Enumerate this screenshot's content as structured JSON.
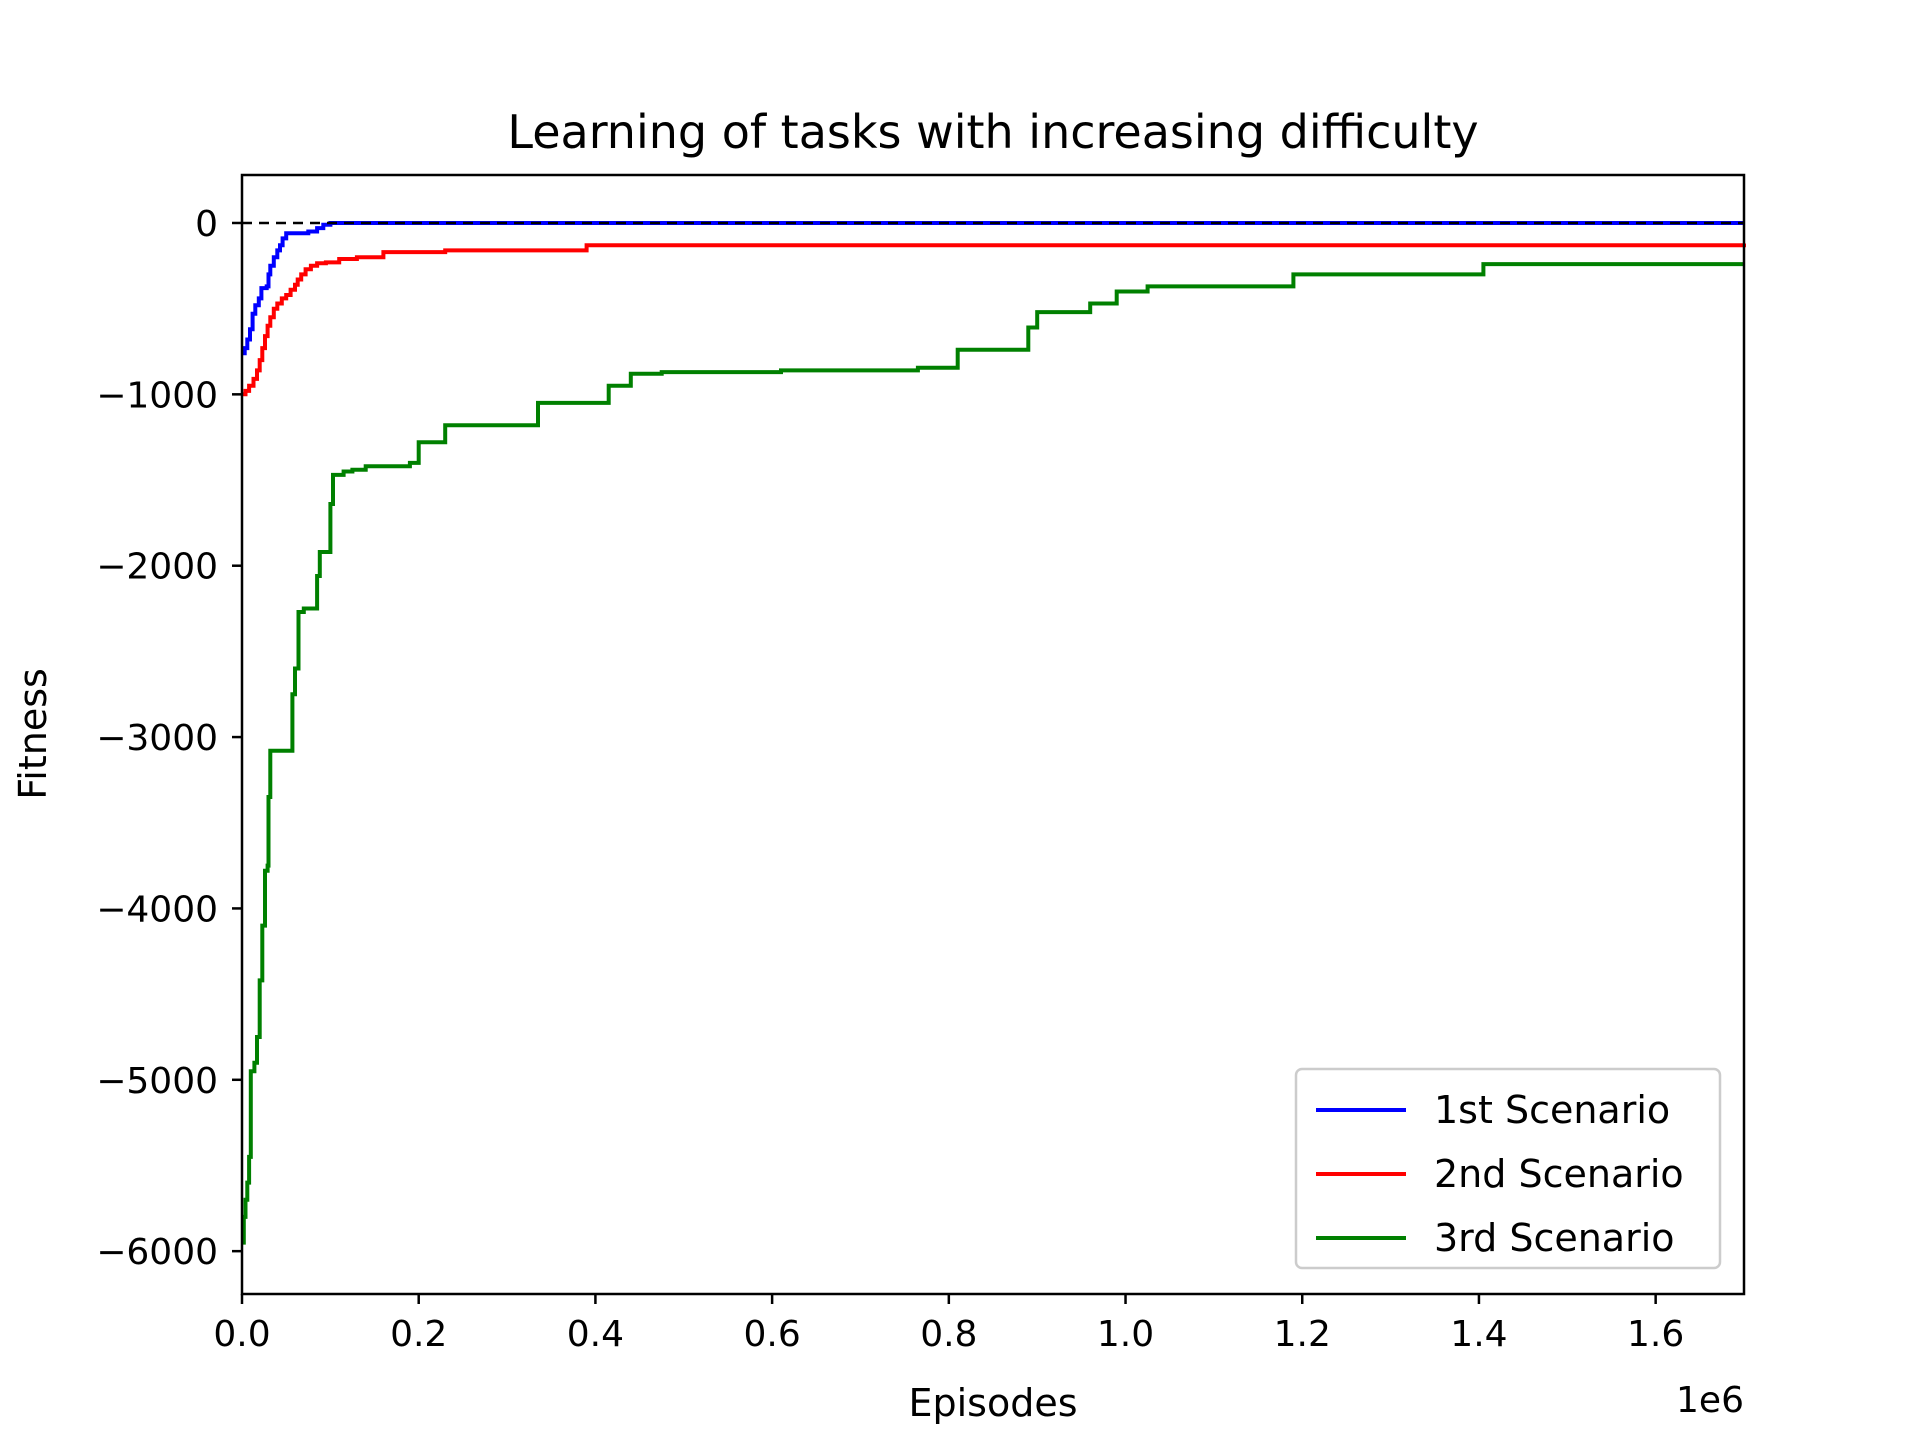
{
  "chart_data": {
    "type": "line",
    "title": "Learning of tasks with increasing difficulty",
    "xlabel": "Episodes",
    "ylabel": "Fitness",
    "x_offset_label": "1e6",
    "xlim": [
      0,
      1700000
    ],
    "ylim": [
      -6250,
      280
    ],
    "x_ticks": [
      {
        "value": 0,
        "label": "0.0"
      },
      {
        "value": 200000,
        "label": "0.2"
      },
      {
        "value": 400000,
        "label": "0.4"
      },
      {
        "value": 600000,
        "label": "0.6"
      },
      {
        "value": 800000,
        "label": "0.8"
      },
      {
        "value": 1000000,
        "label": "1.0"
      },
      {
        "value": 1200000,
        "label": "1.2"
      },
      {
        "value": 1400000,
        "label": "1.4"
      },
      {
        "value": 1600000,
        "label": "1.6"
      }
    ],
    "y_ticks": [
      {
        "value": 0,
        "label": "0"
      },
      {
        "value": -1000,
        "label": "−1000"
      },
      {
        "value": -2000,
        "label": "−2000"
      },
      {
        "value": -3000,
        "label": "−3000"
      },
      {
        "value": -4000,
        "label": "−4000"
      },
      {
        "value": -5000,
        "label": "−5000"
      },
      {
        "value": -6000,
        "label": "−6000"
      }
    ],
    "reference_line": {
      "y": 0,
      "style": "dashed",
      "color": "#000000"
    },
    "grid": false,
    "legend_position": "lower-right",
    "step": true,
    "series": [
      {
        "name": "1st Scenario",
        "color": "#0000ff",
        "points": [
          [
            0,
            -760
          ],
          [
            3000,
            -730
          ],
          [
            6000,
            -680
          ],
          [
            9000,
            -620
          ],
          [
            12000,
            -530
          ],
          [
            15000,
            -480
          ],
          [
            19000,
            -440
          ],
          [
            22000,
            -380
          ],
          [
            28000,
            -370
          ],
          [
            30000,
            -300
          ],
          [
            32000,
            -250
          ],
          [
            36000,
            -200
          ],
          [
            40000,
            -160
          ],
          [
            43000,
            -130
          ],
          [
            46000,
            -90
          ],
          [
            50000,
            -60
          ],
          [
            75000,
            -50
          ],
          [
            85000,
            -30
          ],
          [
            92000,
            -10
          ],
          [
            100000,
            0
          ],
          [
            1700000,
            0
          ]
        ]
      },
      {
        "name": "2nd Scenario",
        "color": "#ff0000",
        "points": [
          [
            0,
            -1000
          ],
          [
            4000,
            -980
          ],
          [
            8000,
            -950
          ],
          [
            13000,
            -910
          ],
          [
            17000,
            -860
          ],
          [
            20000,
            -800
          ],
          [
            23000,
            -730
          ],
          [
            26000,
            -660
          ],
          [
            29000,
            -600
          ],
          [
            32000,
            -550
          ],
          [
            36000,
            -500
          ],
          [
            40000,
            -470
          ],
          [
            45000,
            -440
          ],
          [
            50000,
            -420
          ],
          [
            55000,
            -390
          ],
          [
            60000,
            -360
          ],
          [
            63000,
            -330
          ],
          [
            67000,
            -300
          ],
          [
            72000,
            -270
          ],
          [
            78000,
            -250
          ],
          [
            85000,
            -235
          ],
          [
            95000,
            -230
          ],
          [
            110000,
            -210
          ],
          [
            130000,
            -200
          ],
          [
            160000,
            -170
          ],
          [
            230000,
            -160
          ],
          [
            390000,
            -130
          ],
          [
            1700000,
            -120
          ]
        ]
      },
      {
        "name": "3rd Scenario",
        "color": "#008000",
        "points": [
          [
            0,
            -5950
          ],
          [
            2000,
            -5800
          ],
          [
            4000,
            -5700
          ],
          [
            6000,
            -5600
          ],
          [
            8000,
            -5450
          ],
          [
            10000,
            -4950
          ],
          [
            14000,
            -4900
          ],
          [
            17000,
            -4750
          ],
          [
            20000,
            -4420
          ],
          [
            23000,
            -4100
          ],
          [
            26000,
            -3780
          ],
          [
            29000,
            -3750
          ],
          [
            30000,
            -3350
          ],
          [
            32000,
            -3080
          ],
          [
            57000,
            -2750
          ],
          [
            60000,
            -2600
          ],
          [
            64000,
            -2270
          ],
          [
            70000,
            -2250
          ],
          [
            85000,
            -2060
          ],
          [
            88000,
            -1920
          ],
          [
            100000,
            -1640
          ],
          [
            103000,
            -1470
          ],
          [
            115000,
            -1450
          ],
          [
            125000,
            -1440
          ],
          [
            140000,
            -1420
          ],
          [
            190000,
            -1400
          ],
          [
            200000,
            -1280
          ],
          [
            230000,
            -1180
          ],
          [
            335000,
            -1050
          ],
          [
            415000,
            -950
          ],
          [
            440000,
            -880
          ],
          [
            475000,
            -870
          ],
          [
            610000,
            -860
          ],
          [
            765000,
            -845
          ],
          [
            810000,
            -740
          ],
          [
            890000,
            -610
          ],
          [
            900000,
            -520
          ],
          [
            960000,
            -470
          ],
          [
            990000,
            -400
          ],
          [
            1025000,
            -370
          ],
          [
            1190000,
            -300
          ],
          [
            1405000,
            -240
          ],
          [
            1700000,
            -240
          ]
        ]
      }
    ]
  }
}
